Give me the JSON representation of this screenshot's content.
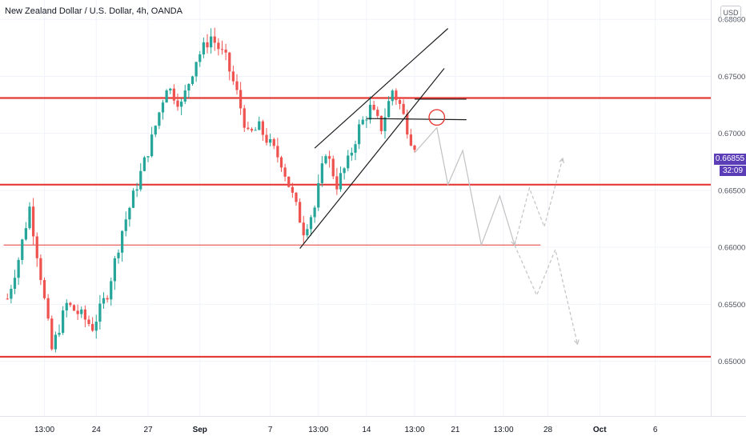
{
  "header": {
    "title": "New Zealand Dollar / U.S. Dollar, 4h, OANDA"
  },
  "currency_badge": "USD",
  "last_price": {
    "label": "0.66855",
    "timer": "32:09",
    "color": "#5b3db8"
  },
  "colors": {
    "up": "#26a69a",
    "down": "#ef5350",
    "level_line": "#e53935",
    "projection": "#c2c2c2",
    "axis_text": "#50535e"
  },
  "chart_data": {
    "type": "candlestick",
    "title": "New Zealand Dollar / U.S. Dollar, 4h, OANDA",
    "xlabel": "",
    "ylabel": "",
    "ylim": [
      0.6452,
      0.6817
    ],
    "y_ticks": [
      "0.68000",
      "0.67500",
      "0.67000",
      "0.66500",
      "0.66000",
      "0.65500",
      "0.65000"
    ],
    "y_tick_values": [
      0.68,
      0.675,
      0.67,
      0.665,
      0.66,
      0.655,
      0.65
    ],
    "x_ticks": [
      "13:00",
      "24",
      "27",
      "Sep",
      "7",
      "13:00",
      "14",
      "13:00",
      "21",
      "13:00",
      "28",
      "Oct",
      "6"
    ],
    "x_tick_bars": [
      10,
      24,
      38,
      52,
      71,
      84,
      97,
      110,
      121,
      134,
      146,
      160,
      175
    ],
    "x_tick_bold": [
      false,
      false,
      false,
      true,
      false,
      false,
      false,
      false,
      false,
      false,
      false,
      true,
      false
    ],
    "bar_range": [
      -2,
      190
    ],
    "price_series": {
      "bars": [
        0,
        3,
        6,
        9,
        12,
        16,
        20,
        23,
        27,
        31,
        35,
        39,
        43,
        47,
        51,
        55,
        59,
        62,
        65,
        68,
        71,
        74,
        77,
        80,
        83,
        86,
        89,
        92,
        95,
        98,
        101,
        104,
        106,
        108,
        110
      ],
      "close": [
        0.6555,
        0.659,
        0.6635,
        0.6575,
        0.651,
        0.655,
        0.654,
        0.653,
        0.656,
        0.6615,
        0.6655,
        0.6695,
        0.6742,
        0.6725,
        0.6765,
        0.6785,
        0.6765,
        0.6735,
        0.6698,
        0.6705,
        0.669,
        0.6675,
        0.6645,
        0.6615,
        0.6635,
        0.6685,
        0.6655,
        0.6675,
        0.6705,
        0.6722,
        0.6705,
        0.6738,
        0.6725,
        0.6705,
        0.66855
      ]
    },
    "horizontal_levels": [
      {
        "price": 0.6731,
        "x_range": [
          -2,
          190
        ],
        "width": 2.2
      },
      {
        "price": 0.6655,
        "x_range": [
          -2,
          190
        ],
        "width": 2.2
      },
      {
        "price": 0.6504,
        "x_range": [
          -2,
          190
        ],
        "width": 2.2
      },
      {
        "price": 0.6602,
        "x_range": [
          -1,
          144
        ],
        "width": 1
      }
    ],
    "trendlines": [
      {
        "from": [
          83,
          0.6687
        ],
        "to": [
          119,
          0.6792
        ]
      },
      {
        "from": [
          79,
          0.6599
        ],
        "to": [
          118,
          0.6757
        ]
      },
      {
        "from": [
          97,
          0.6713
        ],
        "to": [
          124,
          0.6712
        ]
      },
      {
        "from": [
          110,
          0.673
        ],
        "to": [
          124,
          0.673
        ]
      }
    ],
    "circle_marker": {
      "bar": 116,
      "price": 0.6714,
      "radius_bars": 2.1
    },
    "projections": [
      {
        "style": "solid",
        "points": [
          [
            110,
            0.6683
          ],
          [
            116,
            0.6705
          ],
          [
            119,
            0.6655
          ],
          [
            123,
            0.6685
          ],
          [
            128,
            0.6602
          ],
          [
            133,
            0.6645
          ],
          [
            137,
            0.6602
          ]
        ]
      },
      {
        "style": "dashed",
        "points": [
          [
            137,
            0.6602
          ],
          [
            141,
            0.6652
          ],
          [
            145,
            0.6618
          ],
          [
            150,
            0.6678
          ]
        ]
      },
      {
        "style": "dashed",
        "points": [
          [
            137,
            0.6602
          ],
          [
            143,
            0.6558
          ],
          [
            148,
            0.6598
          ],
          [
            154,
            0.6515
          ]
        ]
      }
    ]
  }
}
